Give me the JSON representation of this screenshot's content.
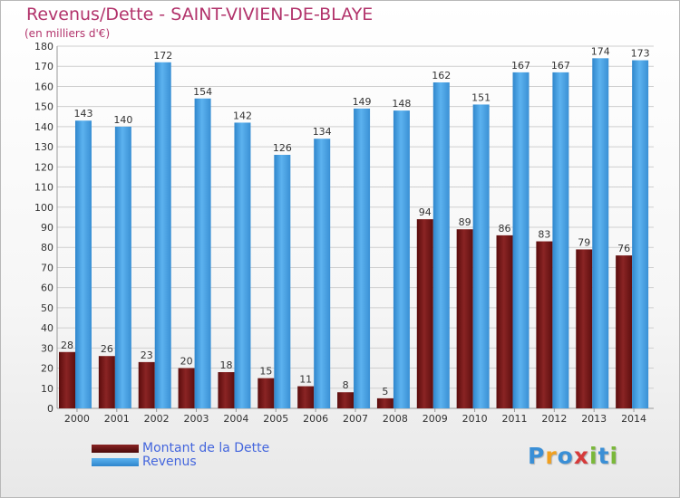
{
  "title": "Revenus/Dette - SAINT-VIVIEN-DE-BLAYE",
  "subtitle": "(en milliers d'€)",
  "logo": [
    "P",
    "r",
    "o",
    "x",
    "i",
    "t",
    "i"
  ],
  "logo_colors": [
    "#3a8fd6",
    "#f0a020",
    "#3a8fd6",
    "#d63a3a",
    "#7ab83a",
    "#3a8fd6",
    "#7ab83a"
  ],
  "chart_data": {
    "type": "bar",
    "title": "Revenus/Dette - SAINT-VIVIEN-DE-BLAYE",
    "ylabel": "(en milliers d'€)",
    "xlabel": "",
    "categories": [
      "2000",
      "2001",
      "2002",
      "2003",
      "2004",
      "2005",
      "2006",
      "2007",
      "2008",
      "2009",
      "2010",
      "2011",
      "2012",
      "2013",
      "2014"
    ],
    "series": [
      {
        "name": "Montant de la Dette",
        "color": "#7a1a1a",
        "values": [
          28,
          26,
          23,
          20,
          18,
          15,
          11,
          8,
          5,
          94,
          89,
          86,
          83,
          79,
          76
        ]
      },
      {
        "name": "Revenus",
        "color": "#4aa3e3",
        "values": [
          143,
          140,
          172,
          154,
          142,
          126,
          134,
          149,
          148,
          162,
          151,
          167,
          167,
          174,
          173
        ]
      }
    ],
    "ylim": [
      0,
      180
    ],
    "ytick_step": 10,
    "grid": true,
    "legend": "bottom-left"
  }
}
